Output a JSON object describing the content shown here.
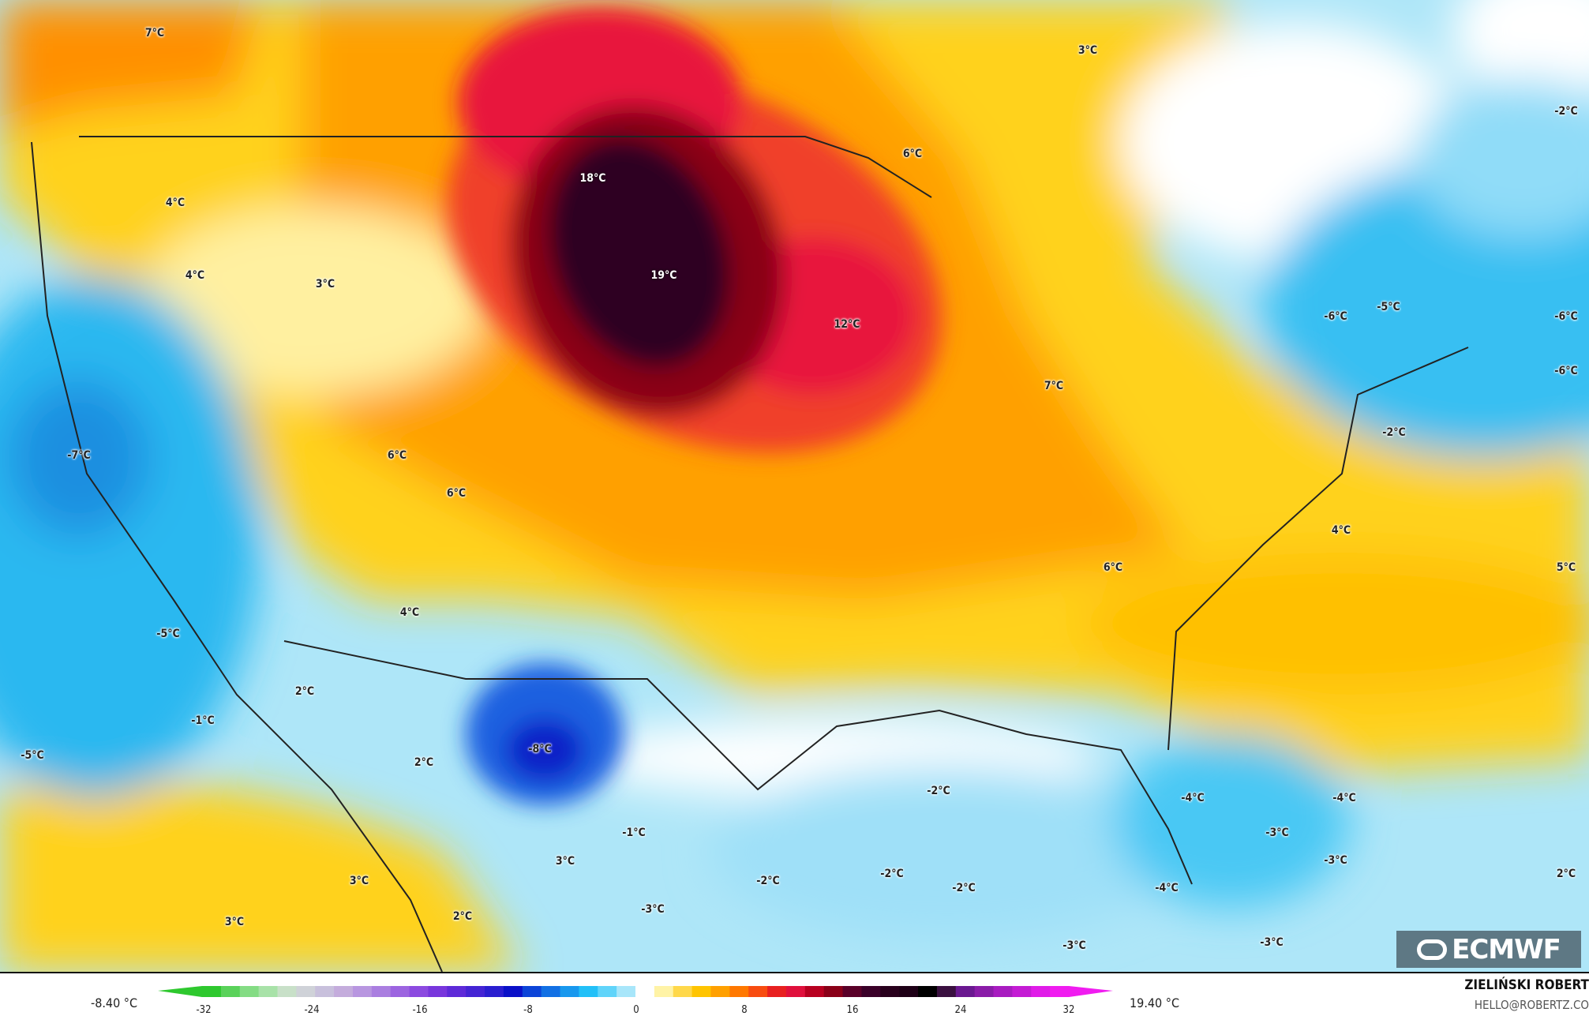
{
  "map": {
    "labels": [
      {
        "text": "7°C"
      },
      {
        "text": "3°C"
      },
      {
        "text": "-2°C"
      },
      {
        "text": "6°C"
      },
      {
        "text": "18°C"
      },
      {
        "text": "4°C"
      },
      {
        "text": "4°C"
      },
      {
        "text": "19°C"
      },
      {
        "text": "3°C"
      },
      {
        "text": "-6°C"
      },
      {
        "text": "-5°C"
      },
      {
        "text": "-6°C"
      },
      {
        "text": "12°C"
      },
      {
        "text": "-6°C"
      },
      {
        "text": "7°C"
      },
      {
        "text": "-2°C"
      },
      {
        "text": "-7°C"
      },
      {
        "text": "6°C"
      },
      {
        "text": "6°C"
      },
      {
        "text": "4°C"
      },
      {
        "text": "5°C"
      },
      {
        "text": "6°C"
      },
      {
        "text": "4°C"
      },
      {
        "text": "-5°C"
      },
      {
        "text": "2°C"
      },
      {
        "text": "-1°C"
      },
      {
        "text": "-5°C"
      },
      {
        "text": "2°C"
      },
      {
        "text": "-8°C"
      },
      {
        "text": "-2°C"
      },
      {
        "text": "-4°C"
      },
      {
        "text": "-4°C"
      },
      {
        "text": "-1°C"
      },
      {
        "text": "-3°C"
      },
      {
        "text": "-3°C"
      },
      {
        "text": "3°C"
      },
      {
        "text": "-2°C"
      },
      {
        "text": "-2°C"
      },
      {
        "text": "-2°C"
      },
      {
        "text": "3°C"
      },
      {
        "text": "-3°C"
      },
      {
        "text": "-4°C"
      },
      {
        "text": "2°C"
      },
      {
        "text": "3°C"
      },
      {
        "text": "2°C"
      },
      {
        "text": "-3°C"
      },
      {
        "text": "-3°C"
      }
    ],
    "logo_text": "ECMWF"
  },
  "legend": {
    "min_value": "-8.40 °C",
    "max_value": "19.40 °C",
    "ticks": [
      "-32",
      "-24",
      "-16",
      "-8",
      "0",
      "8",
      "16",
      "24",
      "32"
    ],
    "colors": [
      "#2ec82e",
      "#5ad25a",
      "#84dc84",
      "#a8e2a8",
      "#c8e0c8",
      "#cfd2d8",
      "#c8c0dc",
      "#c4acdc",
      "#b896e0",
      "#aa7ee0",
      "#9c64e0",
      "#8c4ae0",
      "#7836dc",
      "#5e2ad8",
      "#4424d4",
      "#2a1ed0",
      "#0a10c8",
      "#0c44d8",
      "#1270e4",
      "#1898ee",
      "#22c0f8",
      "#60d4fa",
      "#a8e6fa",
      "#ffffff",
      "#fff3a6",
      "#ffd84a",
      "#ffc400",
      "#ffa000",
      "#ff7800",
      "#f84c10",
      "#e82020",
      "#e0103c",
      "#b80020",
      "#8a0018",
      "#5a0028",
      "#3a0028",
      "#28001c",
      "#1e0016",
      "#000000",
      "#3a1040",
      "#6a1890",
      "#8a1ca8",
      "#a81cc0",
      "#c41cd4",
      "#e01ce8",
      "#f01cf0"
    ],
    "author": "ZIELIŃSKI ROBERT",
    "email": "HELLO@ROBERTZ.CO"
  }
}
